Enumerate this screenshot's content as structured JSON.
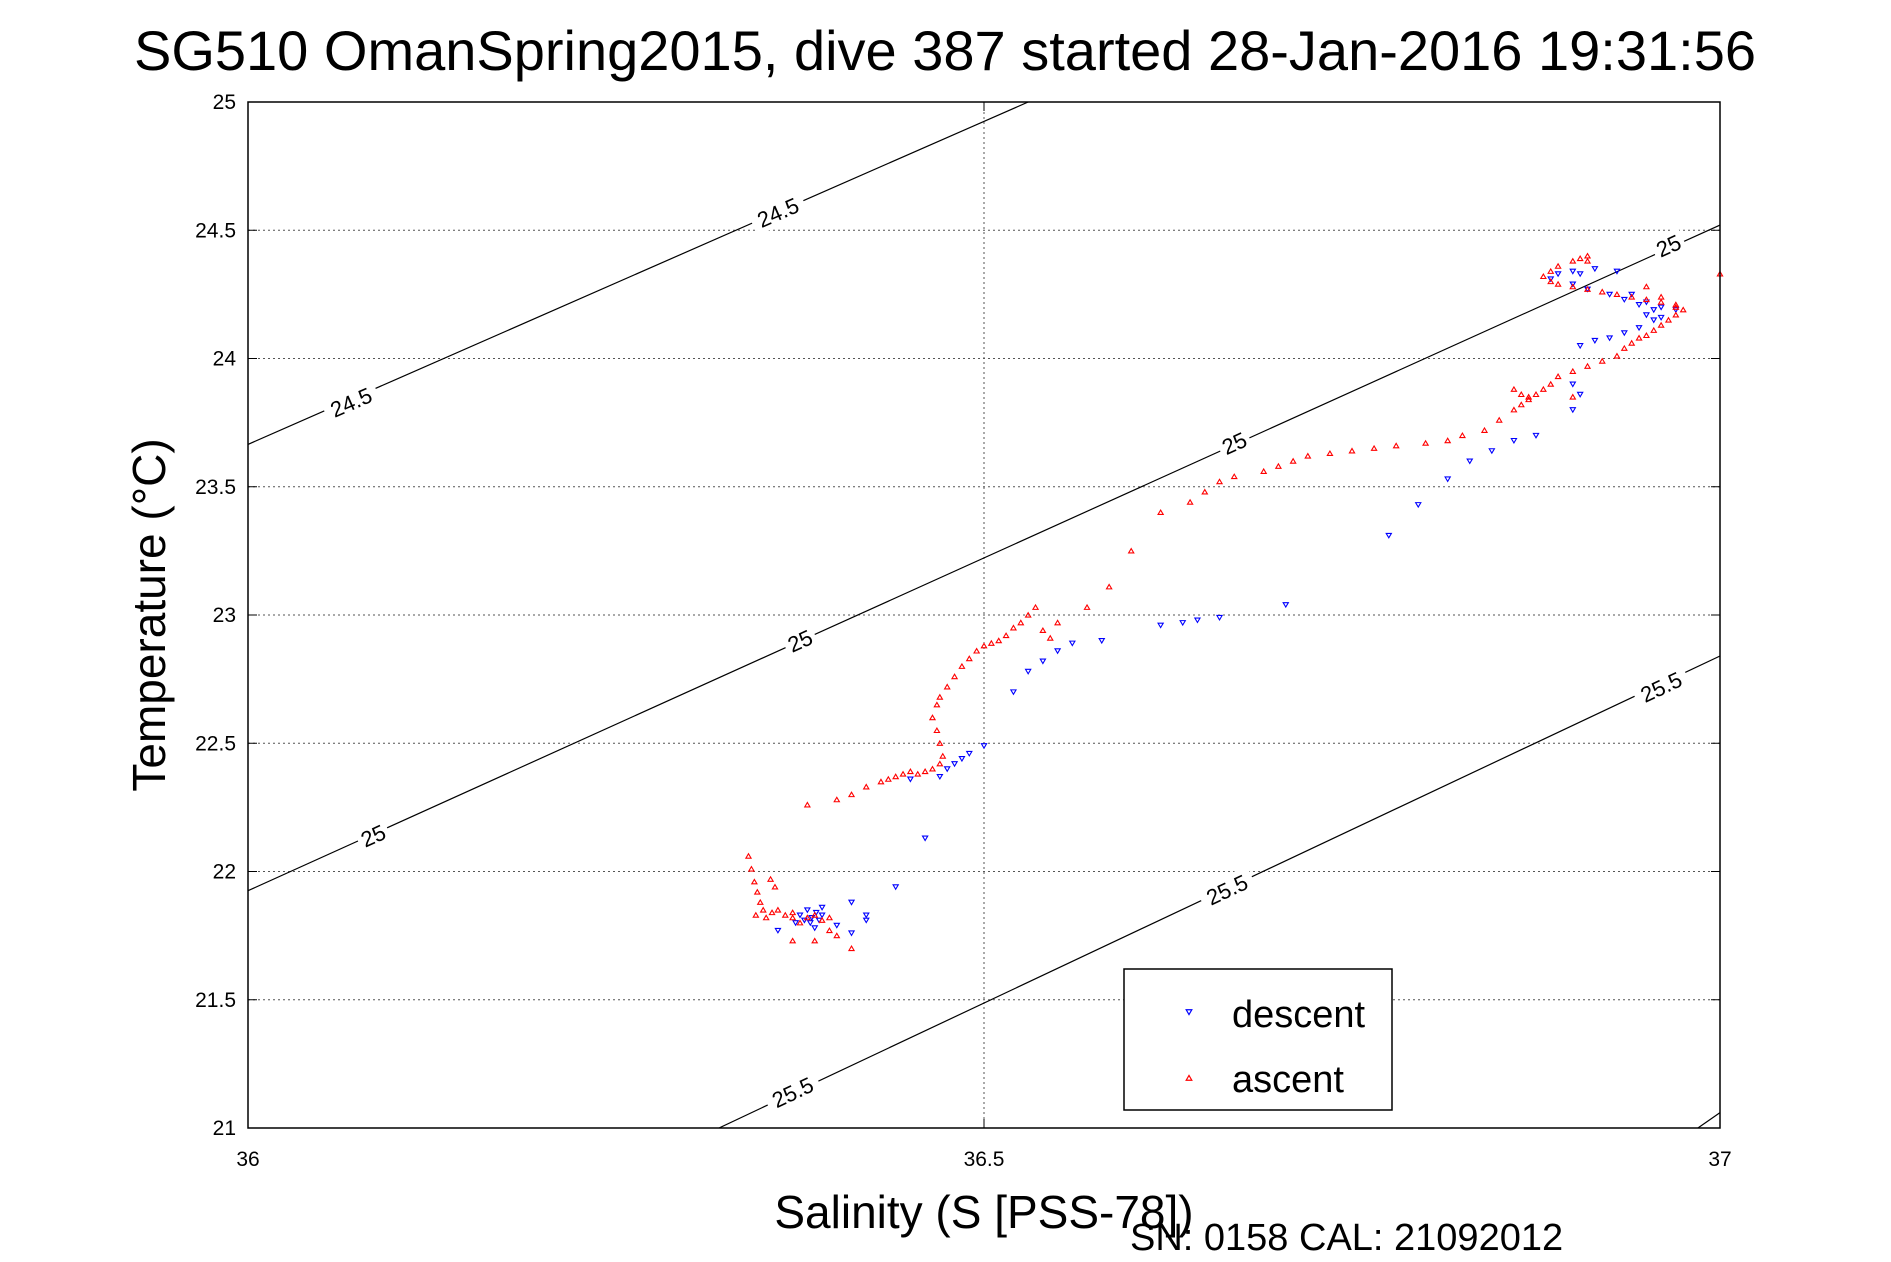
{
  "chart_data": {
    "type": "scatter",
    "title": "SG510 OmanSpring2015, dive 387 started 28-Jan-2016 19:31:56",
    "xlabel": "Salinity (S [PSS-78])",
    "ylabel": "Temperature (°C)",
    "xlim": [
      36,
      37
    ],
    "ylim": [
      21,
      25
    ],
    "xticks": [
      36,
      36.5,
      37
    ],
    "xtick_labels": [
      "36",
      "36.5",
      "37"
    ],
    "yticks": [
      21,
      21.5,
      22,
      22.5,
      23,
      23.5,
      24,
      24.5,
      25
    ],
    "ytick_labels": [
      "21",
      "21.5",
      "22",
      "22.5",
      "23",
      "23.5",
      "24",
      "24.5",
      "25"
    ],
    "grid": true,
    "legend_position": "bottom-right",
    "footer": "SN: 0158  CAL: 21092012",
    "isopycnals": [
      {
        "sigma": 24.5,
        "label": "24.5",
        "points": [
          [
            36.0,
            23.665
          ],
          [
            36.53,
            25.0
          ]
        ],
        "label_points": [
          [
            36.07,
            23.83
          ],
          [
            36.36,
            24.57
          ]
        ]
      },
      {
        "sigma": 25.0,
        "label": "25",
        "points": [
          [
            36.0,
            21.925
          ],
          [
            37.0,
            24.52
          ]
        ],
        "label_points": [
          [
            36.085,
            22.14
          ],
          [
            36.375,
            22.9
          ],
          [
            36.67,
            23.67
          ],
          [
            36.965,
            24.44
          ]
        ]
      },
      {
        "sigma": 25.5,
        "label": "25.5",
        "points": [
          [
            36.32,
            21.0
          ],
          [
            37.0,
            22.84
          ]
        ],
        "label_points": [
          [
            36.37,
            21.14
          ],
          [
            36.665,
            21.93
          ],
          [
            36.96,
            22.72
          ]
        ]
      },
      {
        "sigma": 26.0,
        "label": "",
        "points": [
          [
            36.985,
            21.0
          ],
          [
            37.0,
            21.06
          ]
        ],
        "label_points": []
      }
    ],
    "series": [
      {
        "name": "descent",
        "color": "#0000ff",
        "marker": "triangle-down",
        "points": [
          [
            36.36,
            21.77
          ],
          [
            36.372,
            21.8
          ],
          [
            36.375,
            21.83
          ],
          [
            36.378,
            21.81
          ],
          [
            36.38,
            21.85
          ],
          [
            36.383,
            21.82
          ],
          [
            36.386,
            21.84
          ],
          [
            36.388,
            21.81
          ],
          [
            36.39,
            21.83
          ],
          [
            36.4,
            21.79
          ],
          [
            36.41,
            21.88
          ],
          [
            36.41,
            21.76
          ],
          [
            36.42,
            21.81
          ],
          [
            36.44,
            21.94
          ],
          [
            36.42,
            21.83
          ],
          [
            36.385,
            21.78
          ],
          [
            36.39,
            21.86
          ],
          [
            36.382,
            21.8
          ],
          [
            36.46,
            22.13
          ],
          [
            36.45,
            22.36
          ],
          [
            36.47,
            22.37
          ],
          [
            36.475,
            22.4
          ],
          [
            36.48,
            22.42
          ],
          [
            36.485,
            22.44
          ],
          [
            36.49,
            22.46
          ],
          [
            36.5,
            22.49
          ],
          [
            36.52,
            22.7
          ],
          [
            36.53,
            22.78
          ],
          [
            36.54,
            22.82
          ],
          [
            36.55,
            22.86
          ],
          [
            36.56,
            22.89
          ],
          [
            36.58,
            22.9
          ],
          [
            36.62,
            22.96
          ],
          [
            36.635,
            22.97
          ],
          [
            36.645,
            22.98
          ],
          [
            36.66,
            22.99
          ],
          [
            36.705,
            23.04
          ],
          [
            36.775,
            23.31
          ],
          [
            36.795,
            23.43
          ],
          [
            36.815,
            23.53
          ],
          [
            36.83,
            23.6
          ],
          [
            36.845,
            23.64
          ],
          [
            36.86,
            23.68
          ],
          [
            36.875,
            23.7
          ],
          [
            36.9,
            23.8
          ],
          [
            36.905,
            23.86
          ],
          [
            36.9,
            23.9
          ],
          [
            36.905,
            24.05
          ],
          [
            36.915,
            24.07
          ],
          [
            36.925,
            24.08
          ],
          [
            36.935,
            24.1
          ],
          [
            36.945,
            24.12
          ],
          [
            36.955,
            24.15
          ],
          [
            36.95,
            24.17
          ],
          [
            36.96,
            24.16
          ],
          [
            36.955,
            24.19
          ],
          [
            36.945,
            24.21
          ],
          [
            36.935,
            24.23
          ],
          [
            36.925,
            24.25
          ],
          [
            36.91,
            24.27
          ],
          [
            36.9,
            24.29
          ],
          [
            36.885,
            24.31
          ],
          [
            36.89,
            24.33
          ],
          [
            36.9,
            24.34
          ],
          [
            36.905,
            24.33
          ],
          [
            36.915,
            24.35
          ],
          [
            36.93,
            24.34
          ],
          [
            36.94,
            24.25
          ],
          [
            36.95,
            24.22
          ],
          [
            36.96,
            24.2
          ],
          [
            36.97,
            24.19
          ]
        ]
      },
      {
        "name": "ascent",
        "color": "#ff0000",
        "marker": "triangle-up",
        "points": [
          [
            36.34,
            22.06
          ],
          [
            36.342,
            22.01
          ],
          [
            36.344,
            21.96
          ],
          [
            36.346,
            21.92
          ],
          [
            36.348,
            21.88
          ],
          [
            36.35,
            21.85
          ],
          [
            36.345,
            21.83
          ],
          [
            36.352,
            21.82
          ],
          [
            36.356,
            21.84
          ],
          [
            36.36,
            21.85
          ],
          [
            36.365,
            21.83
          ],
          [
            36.37,
            21.82
          ],
          [
            36.375,
            21.8
          ],
          [
            36.38,
            21.82
          ],
          [
            36.385,
            21.83
          ],
          [
            36.39,
            21.81
          ],
          [
            36.395,
            21.82
          ],
          [
            36.355,
            21.97
          ],
          [
            36.358,
            21.94
          ],
          [
            36.37,
            21.73
          ],
          [
            36.385,
            21.73
          ],
          [
            36.4,
            21.75
          ],
          [
            36.41,
            21.7
          ],
          [
            36.395,
            21.77
          ],
          [
            36.37,
            21.84
          ],
          [
            36.38,
            22.26
          ],
          [
            36.4,
            22.28
          ],
          [
            36.41,
            22.3
          ],
          [
            36.42,
            22.33
          ],
          [
            36.43,
            22.35
          ],
          [
            36.435,
            22.36
          ],
          [
            36.44,
            22.37
          ],
          [
            36.445,
            22.38
          ],
          [
            36.45,
            22.39
          ],
          [
            36.455,
            22.38
          ],
          [
            36.46,
            22.39
          ],
          [
            36.465,
            22.4
          ],
          [
            36.47,
            22.42
          ],
          [
            36.472,
            22.45
          ],
          [
            36.47,
            22.5
          ],
          [
            36.468,
            22.55
          ],
          [
            36.465,
            22.6
          ],
          [
            36.468,
            22.65
          ],
          [
            36.47,
            22.68
          ],
          [
            36.475,
            22.72
          ],
          [
            36.48,
            22.76
          ],
          [
            36.485,
            22.8
          ],
          [
            36.49,
            22.83
          ],
          [
            36.495,
            22.86
          ],
          [
            36.5,
            22.88
          ],
          [
            36.505,
            22.89
          ],
          [
            36.51,
            22.9
          ],
          [
            36.515,
            22.92
          ],
          [
            36.52,
            22.95
          ],
          [
            36.525,
            22.97
          ],
          [
            36.53,
            23.0
          ],
          [
            36.535,
            23.03
          ],
          [
            36.54,
            22.94
          ],
          [
            36.545,
            22.91
          ],
          [
            36.55,
            22.97
          ],
          [
            36.57,
            23.03
          ],
          [
            36.585,
            23.11
          ],
          [
            36.6,
            23.25
          ],
          [
            36.62,
            23.4
          ],
          [
            36.64,
            23.44
          ],
          [
            36.65,
            23.48
          ],
          [
            36.66,
            23.52
          ],
          [
            36.67,
            23.54
          ],
          [
            36.69,
            23.56
          ],
          [
            36.7,
            23.58
          ],
          [
            36.71,
            23.6
          ],
          [
            36.72,
            23.62
          ],
          [
            36.735,
            23.63
          ],
          [
            36.75,
            23.64
          ],
          [
            36.765,
            23.65
          ],
          [
            36.78,
            23.66
          ],
          [
            36.8,
            23.67
          ],
          [
            36.815,
            23.68
          ],
          [
            36.825,
            23.7
          ],
          [
            36.84,
            23.72
          ],
          [
            36.85,
            23.76
          ],
          [
            36.86,
            23.8
          ],
          [
            36.865,
            23.82
          ],
          [
            36.87,
            23.85
          ],
          [
            36.875,
            23.86
          ],
          [
            36.88,
            23.88
          ],
          [
            36.885,
            23.9
          ],
          [
            36.89,
            23.93
          ],
          [
            36.9,
            23.95
          ],
          [
            36.91,
            23.97
          ],
          [
            36.92,
            23.99
          ],
          [
            36.93,
            24.01
          ],
          [
            36.935,
            24.04
          ],
          [
            36.94,
            24.06
          ],
          [
            36.945,
            24.08
          ],
          [
            36.95,
            24.09
          ],
          [
            36.955,
            24.11
          ],
          [
            36.96,
            24.13
          ],
          [
            36.965,
            24.15
          ],
          [
            36.97,
            24.17
          ],
          [
            36.975,
            24.19
          ],
          [
            36.97,
            24.21
          ],
          [
            36.96,
            24.22
          ],
          [
            36.95,
            24.23
          ],
          [
            36.94,
            24.24
          ],
          [
            36.93,
            24.25
          ],
          [
            36.92,
            24.26
          ],
          [
            36.91,
            24.27
          ],
          [
            36.9,
            24.28
          ],
          [
            36.89,
            24.29
          ],
          [
            36.885,
            24.3
          ],
          [
            36.88,
            24.32
          ],
          [
            36.885,
            24.34
          ],
          [
            36.89,
            24.36
          ],
          [
            36.9,
            24.38
          ],
          [
            36.905,
            24.39
          ],
          [
            36.91,
            24.4
          ],
          [
            36.91,
            24.38
          ],
          [
            36.95,
            24.28
          ],
          [
            36.96,
            24.24
          ],
          [
            36.97,
            24.2
          ],
          [
            37.0,
            24.33
          ],
          [
            36.9,
            23.85
          ],
          [
            36.87,
            23.84
          ],
          [
            36.865,
            23.86
          ],
          [
            36.86,
            23.88
          ]
        ]
      }
    ]
  }
}
